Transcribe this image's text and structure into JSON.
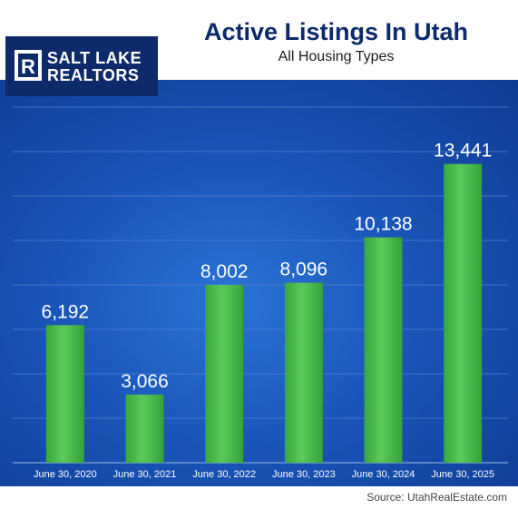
{
  "header": {
    "logo_text_line1": "SALT LAKE",
    "logo_text_line2": "REALTORS",
    "logo_mark": "R",
    "title": "Active Listings In Utah",
    "subtitle": "All Housing Types"
  },
  "footer": {
    "source": "Source: UtahRealEstate.com"
  },
  "colors": {
    "title": "#0d2a6b",
    "bar": "#3fb84a",
    "bar_highlight": "#6fd66a",
    "panel_dark": "#0f3a92",
    "panel_light": "#2a74d6",
    "label": "#ffffff"
  },
  "chart_data": {
    "type": "bar",
    "categories": [
      "June 30, 2020",
      "June 30, 2021",
      "June 30, 2022",
      "June 30, 2023",
      "June 30, 2024",
      "June 30, 2025"
    ],
    "values": [
      6192,
      3066,
      8002,
      8096,
      10138,
      13441
    ],
    "value_labels": [
      "6,192",
      "3,066",
      "8,002",
      "8,096",
      "10,138",
      "13,441"
    ],
    "ylim": [
      0,
      16000
    ],
    "yticks": [
      0,
      2000,
      4000,
      6000,
      8000,
      10000,
      12000,
      14000,
      16000
    ],
    "grid": true,
    "legend": "none"
  }
}
